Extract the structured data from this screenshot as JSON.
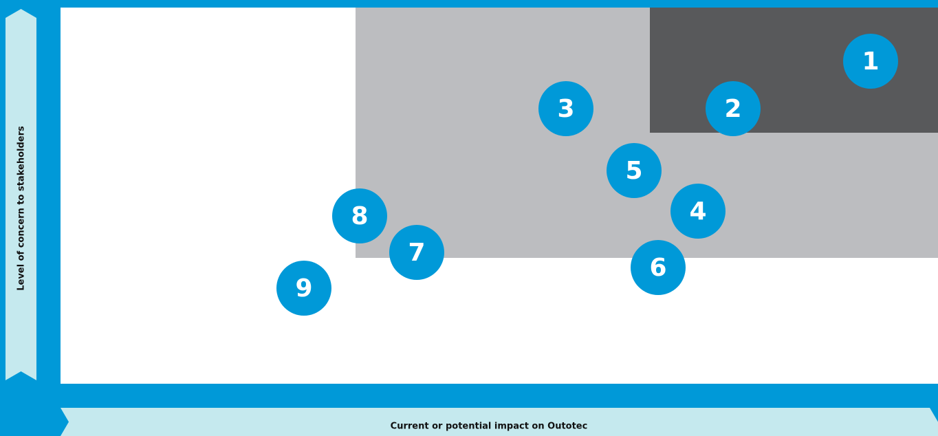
{
  "axes": {
    "y_label": "Level of concern to stakeholders",
    "x_label": "Current or potential impact on Outotec"
  },
  "colors": {
    "frame": "#0099d8",
    "bubble": "#0099d8",
    "ribbon": "#c5e9ee",
    "zone_mid": "#bcbdc0",
    "zone_high": "#58595b",
    "background": "#ffffff"
  },
  "bubbles": [
    "1",
    "2",
    "3",
    "4",
    "5",
    "6",
    "7",
    "8",
    "9"
  ]
}
